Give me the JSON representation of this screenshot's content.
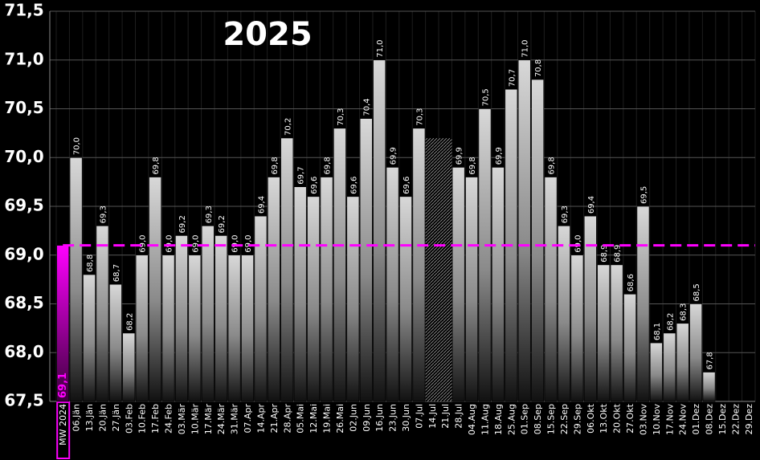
{
  "chart_data": {
    "type": "bar",
    "title": "2025",
    "categories": [
      "MW 2024",
      "06.Jän",
      "13.Jän",
      "20.Jän",
      "27.Jän",
      "03.Feb",
      "10.Feb",
      "17.Feb",
      "24.Feb",
      "03.Mär",
      "10.Mär",
      "17.Mär",
      "24.Mär",
      "31.Mär",
      "07.Apr",
      "14.Apr",
      "21.Apr",
      "28.Apr",
      "05.Mai",
      "12.Mai",
      "19.Mai",
      "26.Mai",
      "02.Jun",
      "09.Jun",
      "16.Jun",
      "23.Jun",
      "30.Jun",
      "07.Jul",
      "14.Jul",
      "21.Jul",
      "28.Jul",
      "04.Aug",
      "11.Aug",
      "18.Aug",
      "25.Aug",
      "01.Sep",
      "08.Sep",
      "15.Sep",
      "22.Sep",
      "29.Sep",
      "06.Okt",
      "13.Okt",
      "20.Okt",
      "27.Okt",
      "03.Nov",
      "10.Nov",
      "17.Nov",
      "24.Nov",
      "01.Dez",
      "08.Dez",
      "15.Dez",
      "22.Dez",
      "29.Dez"
    ],
    "values": [
      69.1,
      70.0,
      68.8,
      69.3,
      68.7,
      68.2,
      69.0,
      69.8,
      69.0,
      69.2,
      69.0,
      69.3,
      69.2,
      69.0,
      69.0,
      69.4,
      69.8,
      70.2,
      69.7,
      69.6,
      69.8,
      70.3,
      69.6,
      70.4,
      71.0,
      69.9,
      69.6,
      70.3,
      null,
      null,
      69.9,
      69.8,
      70.5,
      69.9,
      70.7,
      71.0,
      70.8,
      69.8,
      69.3,
      69.0,
      69.4,
      68.9,
      68.9,
      68.6,
      69.5,
      68.1,
      68.2,
      68.3,
      68.5,
      67.8,
      null,
      null,
      null
    ],
    "value_labels": [
      "69,1",
      "70,0",
      "68,8",
      "69,3",
      "68,7",
      "68,2",
      "69,0",
      "69,8",
      "69,0",
      "69,2",
      "69,0",
      "69,3",
      "69,2",
      "69,0",
      "69,0",
      "69,4",
      "69,8",
      "70,2",
      "69,7",
      "69,6",
      "69,8",
      "70,3",
      "69,6",
      "70,4",
      "71,0",
      "69,9",
      "69,6",
      "70,3",
      null,
      null,
      "69,9",
      "69,8",
      "70,5",
      "69,9",
      "70,7",
      "71,0",
      "70,8",
      "69,8",
      "69,3",
      "69,0",
      "69,4",
      "68,9",
      "68,9",
      "68,6",
      "69,5",
      "68,1",
      "68,2",
      "68,3",
      "68,5",
      "67,8",
      null,
      null,
      null
    ],
    "bar_colors": [
      "#ff00ff",
      "#d4d4d4",
      "#d4d4d4",
      "#d4d4d4",
      "#d4d4d4",
      "#d4d4d4",
      "#d4d4d4",
      "#d4d4d4",
      "#d4d4d4",
      "#d4d4d4",
      "#d4d4d4",
      "#d4d4d4",
      "#d4d4d4",
      "#d4d4d4",
      "#d4d4d4",
      "#d4d4d4",
      "#d4d4d4",
      "#d4d4d4",
      "#d4d4d4",
      "#d4d4d4",
      "#d4d4d4",
      "#d4d4d4",
      "#d4d4d4",
      "#d4d4d4",
      "#d4d4d4",
      "#d4d4d4",
      "#d4d4d4",
      "#d4d4d4",
      "#d4d4d4",
      "#d4d4d4",
      "#d4d4d4",
      "#d4d4d4",
      "#d4d4d4",
      "#d4d4d4",
      "#d4d4d4",
      "#d4d4d4",
      "#d4d4d4",
      "#d4d4d4",
      "#d4d4d4",
      "#d4d4d4",
      "#d4d4d4",
      "#d4d4d4",
      "#d4d4d4",
      "#d4d4d4",
      "#d4d4d4",
      "#d4d4d4",
      "#d4d4d4",
      "#d4d4d4",
      "#d4d4d4",
      "#d4d4d4",
      "#d4d4d4",
      "#d4d4d4",
      "#d4d4d4"
    ],
    "ylim": [
      67.5,
      71.5
    ],
    "yticks": [
      {
        "value": 67.5,
        "label": "67,5"
      },
      {
        "value": 68.0,
        "label": "68,0"
      },
      {
        "value": 68.5,
        "label": "68,5"
      },
      {
        "value": 69.0,
        "label": "69,0"
      },
      {
        "value": 69.5,
        "label": "69,5"
      },
      {
        "value": 70.0,
        "label": "70,0"
      },
      {
        "value": 70.5,
        "label": "70,5"
      },
      {
        "value": 71.0,
        "label": "71,0"
      },
      {
        "value": 71.5,
        "label": "71,5"
      }
    ],
    "grid": true
  }
}
